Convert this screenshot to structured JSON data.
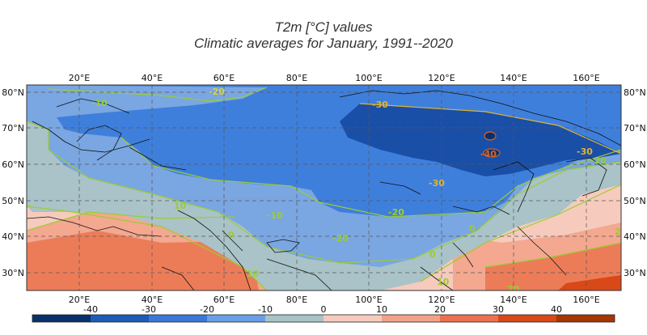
{
  "title": "T2m [°C] values",
  "subtitle": "Climatic averages for January, 1991--2020",
  "lon_ticks": [
    "20°E",
    "40°E",
    "60°E",
    "80°E",
    "100°E",
    "120°E",
    "140°E",
    "160°E"
  ],
  "lat_ticks": [
    "80°N",
    "70°N",
    "60°N",
    "50°N",
    "40°N",
    "30°N"
  ],
  "contour_labels": [
    "-20",
    "-30",
    "-30",
    "-40",
    "-20",
    "-10",
    "-10",
    "-20",
    "-30",
    "-20",
    "0",
    "0",
    "0",
    "10",
    "10",
    "20",
    "20",
    "10"
  ],
  "colorbar": {
    "ticks": [
      "-40",
      "-30",
      "-20",
      "-10",
      "0",
      "10",
      "20",
      "30",
      "40"
    ],
    "colors": [
      "#08306b",
      "#1e5bb8",
      "#3a78d8",
      "#6a9ee6",
      "#a9c3c8",
      "#f6cbbd",
      "#f3a28a",
      "#ec7150",
      "#d94818",
      "#a63603"
    ]
  },
  "colors": {
    "band_m40": "#1a4fa8",
    "band_m30": "#2f6cd0",
    "band_m20": "#3f7fdc",
    "band_m10": "#7aa6e2",
    "band_0": "#a9c3c8",
    "band_10": "#f6cbbd",
    "band_20": "#f3a88f",
    "band_30": "#ec7c58",
    "contour_line": "#9acd32"
  }
}
